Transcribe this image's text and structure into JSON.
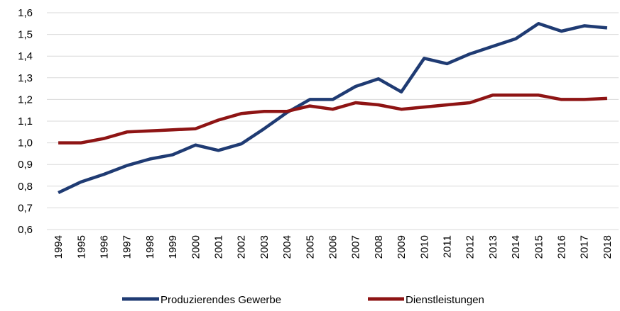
{
  "chart_data": {
    "type": "line",
    "categories": [
      "1994",
      "1995",
      "1996",
      "1997",
      "1998",
      "1999",
      "2000",
      "2001",
      "2002",
      "2003",
      "2004",
      "2005",
      "2006",
      "2007",
      "2008",
      "2009",
      "2010",
      "2011",
      "2012",
      "2013",
      "2014",
      "2015",
      "2016",
      "2017",
      "2018"
    ],
    "series": [
      {
        "name": "Produzierendes Gewerbe",
        "color": "#1f3b73",
        "values": [
          0.77,
          0.82,
          0.855,
          0.895,
          0.925,
          0.945,
          0.99,
          0.965,
          0.995,
          1.065,
          1.14,
          1.2,
          1.2,
          1.26,
          1.295,
          1.235,
          1.39,
          1.365,
          1.41,
          1.445,
          1.48,
          1.55,
          1.515,
          1.54,
          1.53
        ]
      },
      {
        "name": "Dienstleistungen",
        "color": "#8e1414",
        "values": [
          1.0,
          1.0,
          1.02,
          1.05,
          1.055,
          1.06,
          1.065,
          1.105,
          1.135,
          1.145,
          1.145,
          1.17,
          1.155,
          1.185,
          1.175,
          1.155,
          1.165,
          1.175,
          1.185,
          1.22,
          1.22,
          1.22,
          1.2,
          1.2,
          1.205
        ]
      }
    ],
    "ylim": [
      0.6,
      1.6
    ],
    "yticks": [
      {
        "value": 0.6,
        "label": "0,6"
      },
      {
        "value": 0.7,
        "label": "0,7"
      },
      {
        "value": 0.8,
        "label": "0,8"
      },
      {
        "value": 0.9,
        "label": "0,9"
      },
      {
        "value": 1.0,
        "label": "1,0"
      },
      {
        "value": 1.1,
        "label": "1,1"
      },
      {
        "value": 1.2,
        "label": "1,2"
      },
      {
        "value": 1.3,
        "label": "1,3"
      },
      {
        "value": 1.4,
        "label": "1,4"
      },
      {
        "value": 1.5,
        "label": "1,5"
      },
      {
        "value": 1.6,
        "label": "1,6"
      }
    ],
    "grid": true,
    "legend": "bottom"
  }
}
